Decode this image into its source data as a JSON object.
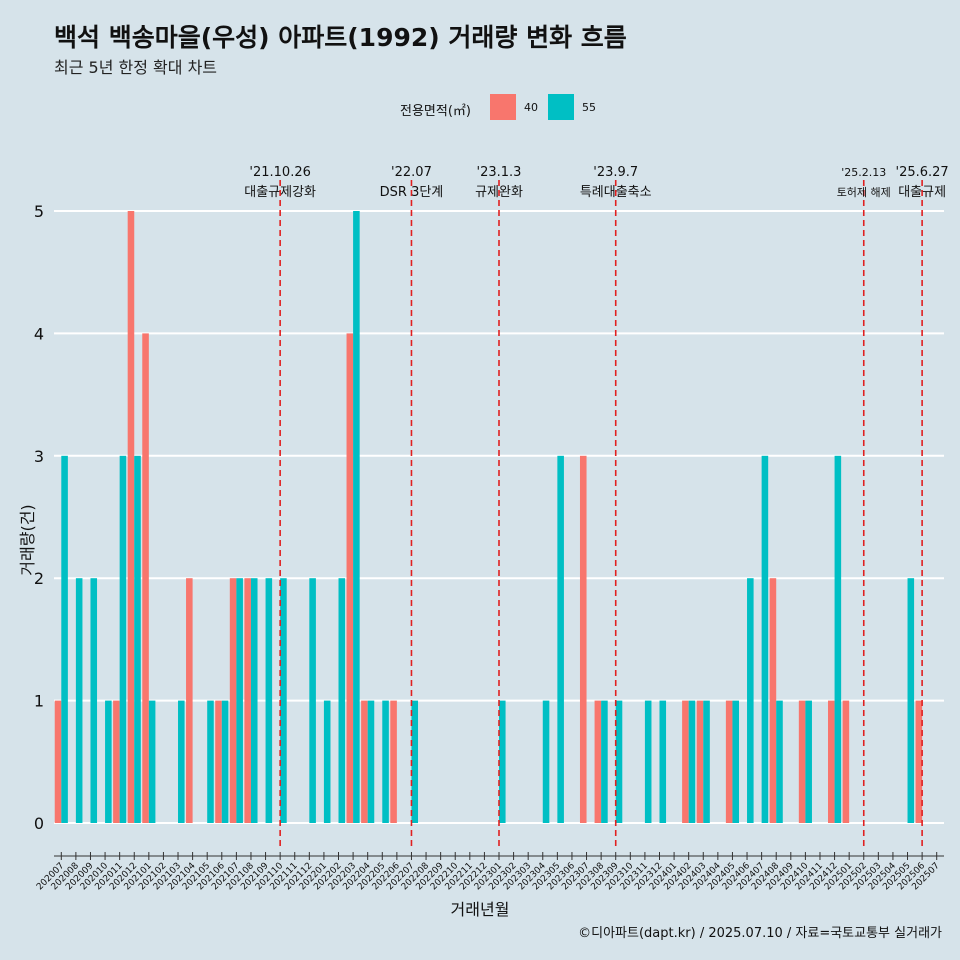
{
  "header": {
    "title": "백석 백송마을(우성) 아파트(1992) 거래량 변화 흐름",
    "subtitle": "최근 5년 한정 확대 차트"
  },
  "legend": {
    "title": "전용면적(㎡)",
    "items": [
      {
        "label": "40",
        "color": "#f8766d"
      },
      {
        "label": "55",
        "color": "#00bfc4"
      }
    ]
  },
  "caption": "©디아파트(dapt.kr) / 2025.07.10 / 자료=국토교통부 실거래가",
  "chart_data": {
    "type": "bar",
    "title": "백석 백송마을(우성) 아파트(1992) 거래량 변화 흐름",
    "xlabel": "거래년월",
    "ylabel": "거래량(건)",
    "ylim": [
      -0.25,
      5.5
    ],
    "yticks": [
      0,
      1,
      2,
      3,
      4,
      5
    ],
    "grid": "horizontal",
    "legend_position": "top",
    "categories": [
      "202007",
      "202008",
      "202009",
      "202010",
      "202011",
      "202012",
      "202101",
      "202102",
      "202103",
      "202104",
      "202105",
      "202106",
      "202107",
      "202108",
      "202109",
      "202110",
      "202111",
      "202112",
      "202201",
      "202202",
      "202203",
      "202204",
      "202205",
      "202206",
      "202207",
      "202208",
      "202209",
      "202210",
      "202211",
      "202212",
      "202301",
      "202302",
      "202303",
      "202304",
      "202305",
      "202306",
      "202307",
      "202308",
      "202309",
      "202310",
      "202311",
      "202312",
      "202401",
      "202402",
      "202403",
      "202404",
      "202405",
      "202406",
      "202407",
      "202408",
      "202409",
      "202410",
      "202411",
      "202412",
      "202501",
      "202502",
      "202503",
      "202504",
      "202505",
      "202506",
      "202507"
    ],
    "series": [
      {
        "name": "40",
        "color": "#f8766d",
        "values": [
          1,
          0,
          0,
          0,
          1,
          5,
          4,
          0,
          0,
          2,
          0,
          1,
          2,
          2,
          0,
          0,
          0,
          0,
          0,
          0,
          4,
          1,
          0,
          1,
          0,
          0,
          0,
          0,
          0,
          0,
          0,
          0,
          0,
          0,
          0,
          0,
          3,
          1,
          0,
          0,
          0,
          0,
          0,
          1,
          1,
          0,
          1,
          0,
          0,
          2,
          0,
          1,
          0,
          1,
          1,
          0,
          0,
          0,
          0,
          1,
          0
        ]
      },
      {
        "name": "55",
        "color": "#00bfc4",
        "values": [
          3,
          2,
          2,
          1,
          3,
          3,
          1,
          0,
          1,
          0,
          1,
          1,
          2,
          2,
          2,
          2,
          0,
          2,
          1,
          2,
          5,
          1,
          1,
          0,
          1,
          0,
          0,
          0,
          0,
          0,
          1,
          0,
          0,
          1,
          3,
          0,
          0,
          1,
          1,
          0,
          1,
          1,
          0,
          1,
          1,
          0,
          1,
          2,
          3,
          1,
          0,
          1,
          0,
          3,
          0,
          0,
          0,
          0,
          2,
          0,
          0
        ]
      }
    ],
    "events": [
      {
        "date": "'21.10.26",
        "label": "대출규제강화",
        "category_pos": 15.5
      },
      {
        "date": "'22.07",
        "label": "DSR 3단계",
        "category_pos": 24.5
      },
      {
        "date": "'23.1.3",
        "label": "규제완화",
        "category_pos": 30.5
      },
      {
        "date": "'23.9.7",
        "label": "특례대출축소",
        "category_pos": 38.5
      },
      {
        "date": "'25.2.13",
        "label": "토허제 해제",
        "category_pos": 55.5
      },
      {
        "date": "'25.6.27",
        "label": "대출규제",
        "category_pos": 59.5
      }
    ]
  }
}
